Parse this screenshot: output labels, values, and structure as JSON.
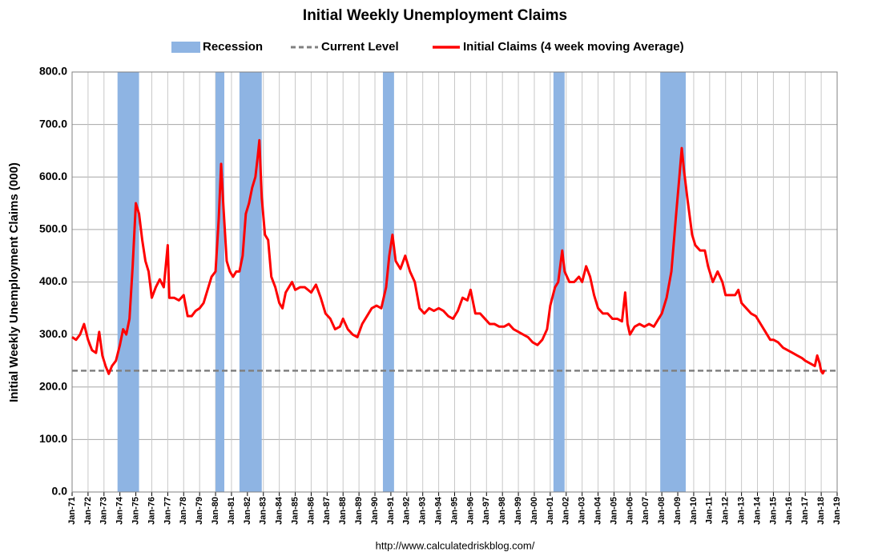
{
  "chart_data": {
    "type": "line",
    "title": "Initial Weekly Unemployment Claims",
    "y_label": "Initial Weekly Unemployment Claims (000)",
    "source": "http://www.calculatedriskblog.com/",
    "grid": true,
    "xlim": [
      1971,
      2019
    ],
    "ylim": [
      0,
      800
    ],
    "yticks": [
      {
        "value": 0,
        "label": "0.0"
      },
      {
        "value": 100,
        "label": "100.0"
      },
      {
        "value": 200,
        "label": "200.0"
      },
      {
        "value": 300,
        "label": "300.0"
      },
      {
        "value": 400,
        "label": "400.0"
      },
      {
        "value": 500,
        "label": "500.0"
      },
      {
        "value": 600,
        "label": "600.0"
      },
      {
        "value": 700,
        "label": "700.0"
      },
      {
        "value": 800,
        "label": "800.0"
      }
    ],
    "xticks": [
      {
        "value": 1971,
        "label": "Jan-71"
      },
      {
        "value": 1972,
        "label": "Jan-72"
      },
      {
        "value": 1973,
        "label": "Jan-73"
      },
      {
        "value": 1974,
        "label": "Jan-74"
      },
      {
        "value": 1975,
        "label": "Jan-75"
      },
      {
        "value": 1976,
        "label": "Jan-76"
      },
      {
        "value": 1977,
        "label": "Jan-77"
      },
      {
        "value": 1978,
        "label": "Jan-78"
      },
      {
        "value": 1979,
        "label": "Jan-79"
      },
      {
        "value": 1980,
        "label": "Jan-80"
      },
      {
        "value": 1981,
        "label": "Jan-81"
      },
      {
        "value": 1982,
        "label": "Jan-82"
      },
      {
        "value": 1983,
        "label": "Jan-83"
      },
      {
        "value": 1984,
        "label": "Jan-84"
      },
      {
        "value": 1985,
        "label": "Jan-85"
      },
      {
        "value": 1986,
        "label": "Jan-86"
      },
      {
        "value": 1987,
        "label": "Jan-87"
      },
      {
        "value": 1988,
        "label": "Jan-88"
      },
      {
        "value": 1989,
        "label": "Jan-89"
      },
      {
        "value": 1990,
        "label": "Jan-90"
      },
      {
        "value": 1991,
        "label": "Jan-91"
      },
      {
        "value": 1992,
        "label": "Jan-92"
      },
      {
        "value": 1993,
        "label": "Jan-93"
      },
      {
        "value": 1994,
        "label": "Jan-94"
      },
      {
        "value": 1995,
        "label": "Jan-95"
      },
      {
        "value": 1996,
        "label": "Jan-96"
      },
      {
        "value": 1997,
        "label": "Jan-97"
      },
      {
        "value": 1998,
        "label": "Jan-98"
      },
      {
        "value": 1999,
        "label": "Jan-99"
      },
      {
        "value": 2000,
        "label": "Jan-00"
      },
      {
        "value": 2001,
        "label": "Jan-01"
      },
      {
        "value": 2002,
        "label": "Jan-02"
      },
      {
        "value": 2003,
        "label": "Jan-03"
      },
      {
        "value": 2004,
        "label": "Jan-04"
      },
      {
        "value": 2005,
        "label": "Jan-05"
      },
      {
        "value": 2006,
        "label": "Jan-06"
      },
      {
        "value": 2007,
        "label": "Jan-07"
      },
      {
        "value": 2008,
        "label": "Jan-08"
      },
      {
        "value": 2009,
        "label": "Jan-09"
      },
      {
        "value": 2010,
        "label": "Jan-10"
      },
      {
        "value": 2011,
        "label": "Jan-11"
      },
      {
        "value": 2012,
        "label": "Jan-12"
      },
      {
        "value": 2013,
        "label": "Jan-13"
      },
      {
        "value": 2014,
        "label": "Jan-14"
      },
      {
        "value": 2015,
        "label": "Jan-15"
      },
      {
        "value": 2016,
        "label": "Jan-16"
      },
      {
        "value": 2017,
        "label": "Jan-17"
      },
      {
        "value": 2018,
        "label": "Jan-18"
      },
      {
        "value": 2019,
        "label": "Jan-19"
      }
    ],
    "recessions": {
      "name": "Recession",
      "color": "#8eb4e3",
      "periods": [
        [
          1973.85,
          1975.2
        ],
        [
          1980.0,
          1980.55
        ],
        [
          1981.5,
          1982.9
        ],
        [
          1990.5,
          1991.2
        ],
        [
          2001.2,
          2001.9
        ],
        [
          2007.9,
          2009.5
        ]
      ]
    },
    "current_level": {
      "name": "Current Level",
      "value": 231,
      "color": "#808080"
    },
    "x": [
      1971.0,
      1971.25,
      1971.5,
      1971.75,
      1972.0,
      1972.25,
      1972.5,
      1972.7,
      1972.9,
      1973.1,
      1973.3,
      1973.5,
      1973.75,
      1974.0,
      1974.2,
      1974.4,
      1974.6,
      1974.8,
      1975.0,
      1975.2,
      1975.4,
      1975.6,
      1975.8,
      1976.0,
      1976.25,
      1976.5,
      1976.75,
      1977.0,
      1977.1,
      1977.4,
      1977.7,
      1978.0,
      1978.25,
      1978.5,
      1978.75,
      1979.0,
      1979.25,
      1979.5,
      1979.75,
      1980.0,
      1980.2,
      1980.35,
      1980.5,
      1980.7,
      1980.9,
      1981.1,
      1981.3,
      1981.5,
      1981.7,
      1981.9,
      1982.1,
      1982.3,
      1982.5,
      1982.65,
      1982.75,
      1982.9,
      1983.1,
      1983.3,
      1983.5,
      1983.75,
      1984.0,
      1984.2,
      1984.4,
      1984.6,
      1984.8,
      1985.0,
      1985.3,
      1985.6,
      1986.0,
      1986.3,
      1986.6,
      1986.9,
      1987.2,
      1987.5,
      1987.8,
      1988.0,
      1988.3,
      1988.6,
      1988.9,
      1989.2,
      1989.5,
      1989.8,
      1990.1,
      1990.4,
      1990.7,
      1990.9,
      1991.1,
      1991.3,
      1991.6,
      1991.9,
      1992.2,
      1992.5,
      1992.8,
      1993.1,
      1993.4,
      1993.7,
      1994.0,
      1994.3,
      1994.6,
      1994.9,
      1995.2,
      1995.5,
      1995.8,
      1996.0,
      1996.3,
      1996.6,
      1996.9,
      1997.2,
      1997.5,
      1997.8,
      1998.1,
      1998.4,
      1998.7,
      1999.0,
      1999.3,
      1999.6,
      1999.9,
      2000.2,
      2000.5,
      2000.8,
      2001.0,
      2001.3,
      2001.5,
      2001.75,
      2001.9,
      2002.2,
      2002.5,
      2002.8,
      2003.0,
      2003.25,
      2003.5,
      2003.75,
      2004.0,
      2004.3,
      2004.6,
      2004.9,
      2005.2,
      2005.5,
      2005.7,
      2005.85,
      2006.0,
      2006.3,
      2006.6,
      2006.9,
      2007.2,
      2007.5,
      2007.8,
      2008.0,
      2008.3,
      2008.6,
      2008.9,
      2009.1,
      2009.25,
      2009.4,
      2009.6,
      2009.9,
      2010.1,
      2010.4,
      2010.7,
      2010.9,
      2011.2,
      2011.5,
      2011.8,
      2012.0,
      2012.3,
      2012.6,
      2012.8,
      2013.0,
      2013.3,
      2013.6,
      2013.9,
      2014.2,
      2014.5,
      2014.8,
      2015.0,
      2015.3,
      2015.6,
      2015.9,
      2016.2,
      2016.5,
      2016.8,
      2017.0,
      2017.3,
      2017.6,
      2017.75,
      2017.9,
      2018.0,
      2018.1,
      2018.2
    ],
    "series": [
      {
        "name": "Initial Claims (4 week moving Average)",
        "color": "#ff0000",
        "values": [
          295,
          290,
          300,
          320,
          290,
          270,
          265,
          305,
          260,
          240,
          225,
          240,
          250,
          280,
          310,
          300,
          330,
          430,
          550,
          530,
          480,
          440,
          420,
          370,
          390,
          405,
          390,
          470,
          370,
          370,
          365,
          375,
          335,
          335,
          345,
          350,
          360,
          385,
          410,
          420,
          520,
          625,
          540,
          440,
          420,
          410,
          420,
          420,
          450,
          530,
          550,
          580,
          600,
          640,
          670,
          560,
          490,
          480,
          410,
          390,
          360,
          350,
          380,
          390,
          400,
          385,
          390,
          390,
          380,
          395,
          370,
          340,
          330,
          310,
          315,
          330,
          310,
          300,
          295,
          320,
          335,
          350,
          355,
          350,
          390,
          450,
          490,
          440,
          425,
          450,
          420,
          400,
          350,
          340,
          350,
          345,
          350,
          345,
          335,
          330,
          345,
          370,
          365,
          385,
          340,
          340,
          330,
          320,
          320,
          315,
          315,
          320,
          310,
          305,
          300,
          295,
          285,
          280,
          290,
          310,
          355,
          390,
          400,
          460,
          420,
          400,
          400,
          410,
          400,
          430,
          410,
          375,
          350,
          340,
          340,
          330,
          330,
          325,
          380,
          320,
          300,
          315,
          320,
          315,
          320,
          315,
          330,
          340,
          370,
          420,
          530,
          600,
          655,
          610,
          560,
          490,
          470,
          460,
          460,
          430,
          400,
          420,
          400,
          375,
          375,
          375,
          385,
          360,
          350,
          340,
          335,
          320,
          305,
          290,
          290,
          285,
          275,
          270,
          265,
          260,
          255,
          250,
          245,
          240,
          260,
          245,
          230,
          226,
          232
        ]
      }
    ]
  }
}
